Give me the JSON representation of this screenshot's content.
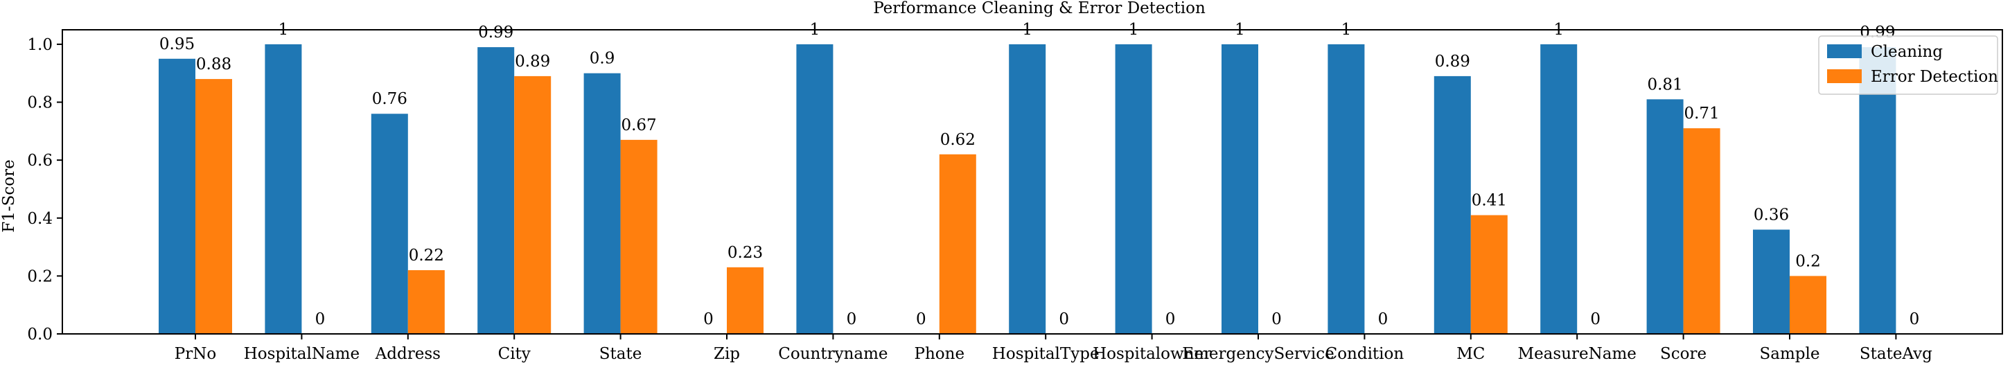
{
  "chart_data": {
    "type": "bar",
    "title": "Performance Cleaning & Error Detection",
    "xlabel": "",
    "ylabel": "F1-Score",
    "ylim": [
      0,
      1.05
    ],
    "yticks": [
      "0.0",
      "0.2",
      "0.4",
      "0.6",
      "0.8",
      "1.0"
    ],
    "grid": false,
    "legend_position": "top-right",
    "categories": [
      "PrNo",
      "HospitalName",
      "Address",
      "City",
      "State",
      "Zip",
      "Countryname",
      "Phone",
      "HospitalType",
      "Hospitalowner",
      "EmergencyService",
      "Condition",
      "MC",
      "MeasureName",
      "Score",
      "Sample",
      "StateAvg"
    ],
    "series": [
      {
        "name": "Cleaning",
        "color": "#1f77b4",
        "values": [
          0.95,
          1,
          0.76,
          0.99,
          0.9,
          0,
          1,
          0,
          1,
          1,
          1,
          1,
          0.89,
          1,
          0.81,
          0.36,
          0.99
        ],
        "labels": [
          "0.95",
          "1",
          "0.76",
          "0.99",
          "0.9",
          "0",
          "1",
          "0",
          "1",
          "1",
          "1",
          "1",
          "0.89",
          "1",
          "0.81",
          "0.36",
          "0.99"
        ]
      },
      {
        "name": "Error Detection",
        "color": "#ff7f0e",
        "values": [
          0.88,
          0,
          0.22,
          0.89,
          0.67,
          0.23,
          0,
          0.62,
          0,
          0,
          0,
          0,
          0.41,
          0,
          0.71,
          0.2,
          0
        ],
        "labels": [
          "0.88",
          "0",
          "0.22",
          "0.89",
          "0.67",
          "0.23",
          "0",
          "0.62",
          "0",
          "0",
          "0",
          "0",
          "0.41",
          "0",
          "0.71",
          "0.2",
          "0"
        ]
      }
    ]
  }
}
